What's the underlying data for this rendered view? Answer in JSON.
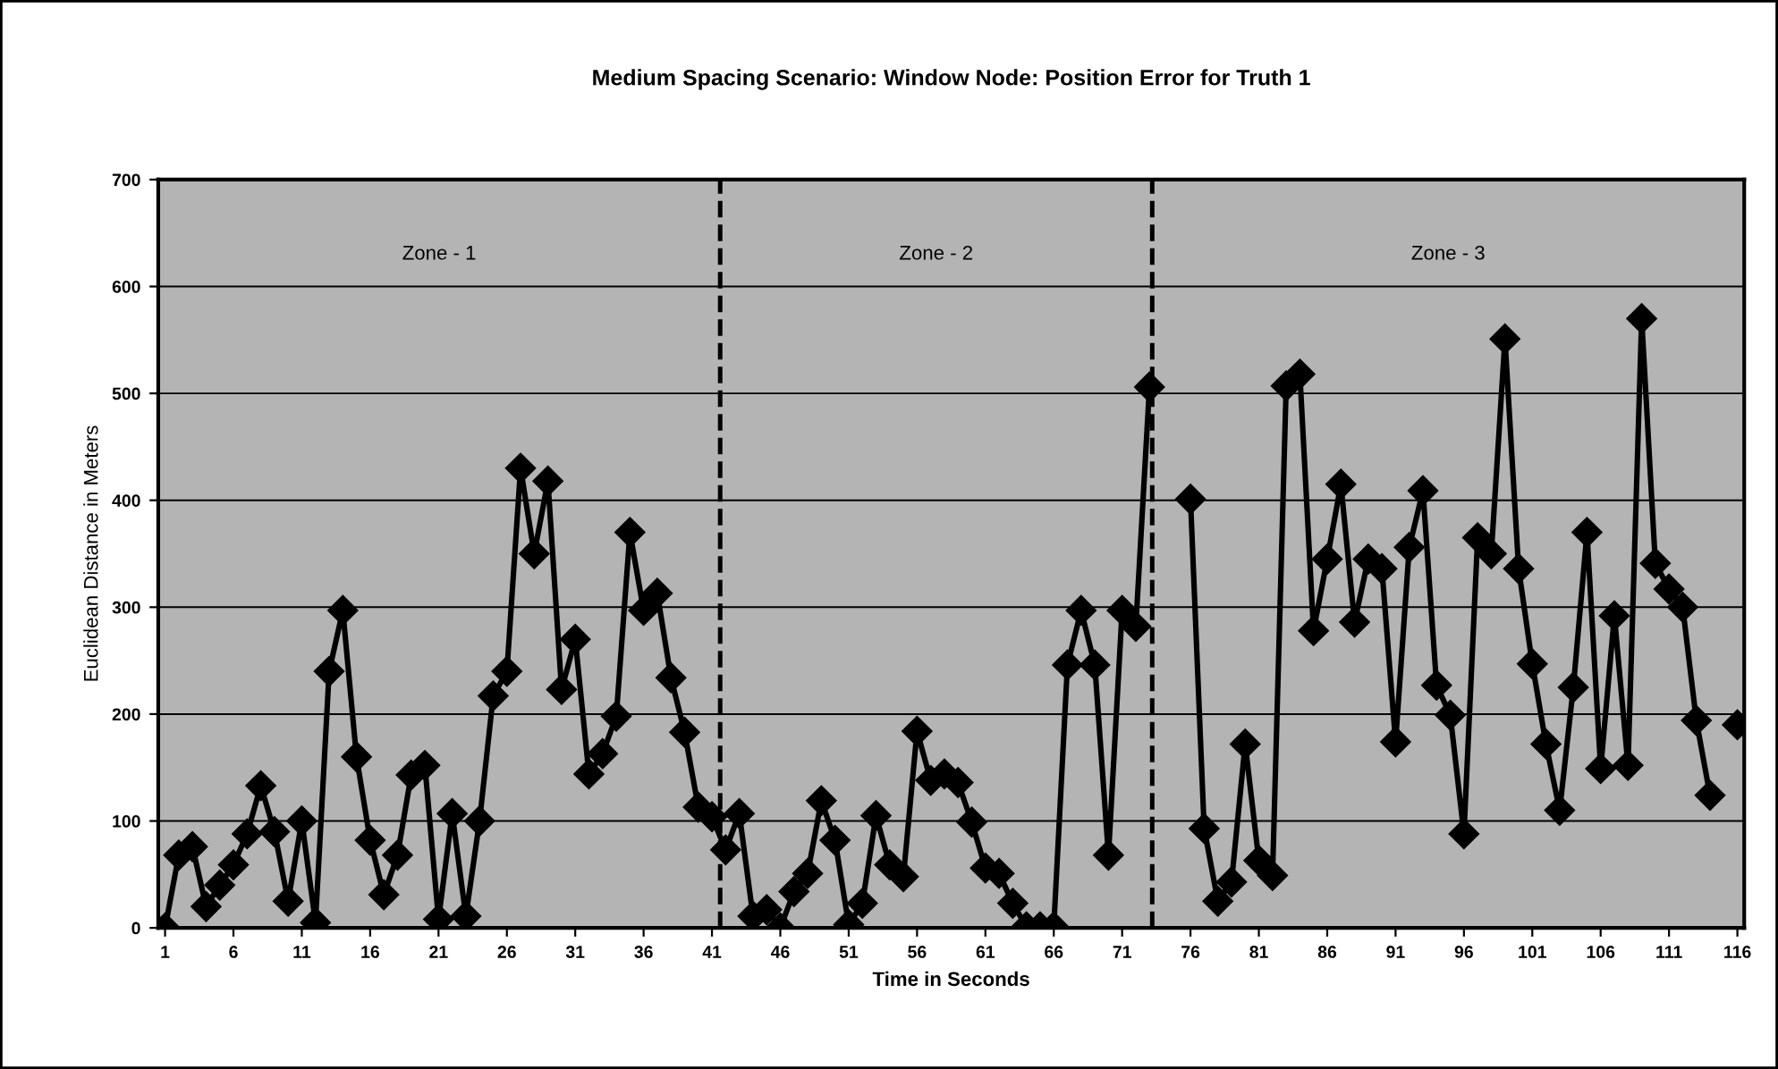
{
  "chart_data": {
    "type": "line",
    "title": "Medium Spacing Scenario: Window Node: Position Error for Truth 1",
    "xlabel": "Time in Seconds",
    "ylabel": "Euclidean Distance in Meters",
    "x": [
      1,
      2,
      3,
      4,
      5,
      6,
      7,
      8,
      9,
      10,
      11,
      12,
      13,
      14,
      15,
      16,
      17,
      18,
      19,
      20,
      21,
      22,
      23,
      24,
      25,
      26,
      27,
      28,
      29,
      30,
      31,
      32,
      33,
      34,
      35,
      36,
      37,
      38,
      39,
      40,
      41,
      42,
      43,
      44,
      45,
      46,
      47,
      48,
      49,
      50,
      51,
      52,
      53,
      54,
      55,
      56,
      57,
      58,
      59,
      60,
      61,
      62,
      63,
      64,
      65,
      66,
      67,
      68,
      69,
      70,
      71,
      72,
      73,
      74,
      75,
      76,
      77,
      78,
      79,
      80,
      81,
      82,
      83,
      84,
      85,
      86,
      87,
      88,
      89,
      90,
      91,
      92,
      93,
      94,
      95,
      96,
      97,
      98,
      99,
      100,
      101,
      102,
      103,
      104,
      105,
      106,
      107,
      108,
      109,
      110,
      111,
      112,
      113,
      114,
      115,
      116
    ],
    "series": [
      {
        "color": "#000000",
        "values": [
          0,
          68,
          76,
          20,
          40,
          59,
          88,
          133,
          90,
          25,
          100,
          5,
          240,
          297,
          160,
          82,
          31,
          68,
          143,
          152,
          8,
          107,
          11,
          100,
          217,
          240,
          430,
          350,
          418,
          223,
          270,
          144,
          163,
          198,
          370,
          297,
          313,
          234,
          183,
          113,
          104,
          73,
          107,
          11,
          17,
          0,
          34,
          51,
          119,
          82,
          3,
          23,
          105,
          59,
          48,
          184,
          138,
          144,
          136,
          99,
          56,
          51,
          23,
          1,
          1,
          1,
          246,
          297,
          246,
          68,
          297,
          282,
          506,
          null,
          null,
          401,
          93,
          25,
          43,
          172,
          63,
          49,
          507,
          518,
          278,
          345,
          415,
          286,
          345,
          336,
          174,
          356,
          409,
          227,
          199,
          88,
          365,
          350,
          551,
          336,
          247,
          172,
          110,
          225,
          370,
          149,
          292,
          152,
          570,
          341,
          317,
          300,
          194,
          124,
          null,
          190
        ]
      }
    ],
    "xlim": [
      0.5,
      116.5
    ],
    "xticks": [
      1,
      6,
      11,
      16,
      21,
      26,
      31,
      36,
      41,
      46,
      51,
      56,
      61,
      66,
      71,
      76,
      81,
      86,
      91,
      96,
      101,
      106,
      111,
      116
    ],
    "ylim": [
      0,
      700
    ],
    "yticks": [
      0,
      100,
      200,
      300,
      400,
      500,
      600,
      700
    ],
    "ref_lines": [
      {
        "axis": "x",
        "value": 41.6,
        "line_style": "dashed",
        "color": "#000000"
      },
      {
        "axis": "x",
        "value": 73.2,
        "line_style": "dashed",
        "color": "#000000"
      }
    ],
    "annotations": [
      "Zone - 1",
      "Zone - 2",
      "Zone - 3"
    ],
    "grid": "y",
    "marker": "diamond",
    "line_style": "solid",
    "legend": false
  }
}
